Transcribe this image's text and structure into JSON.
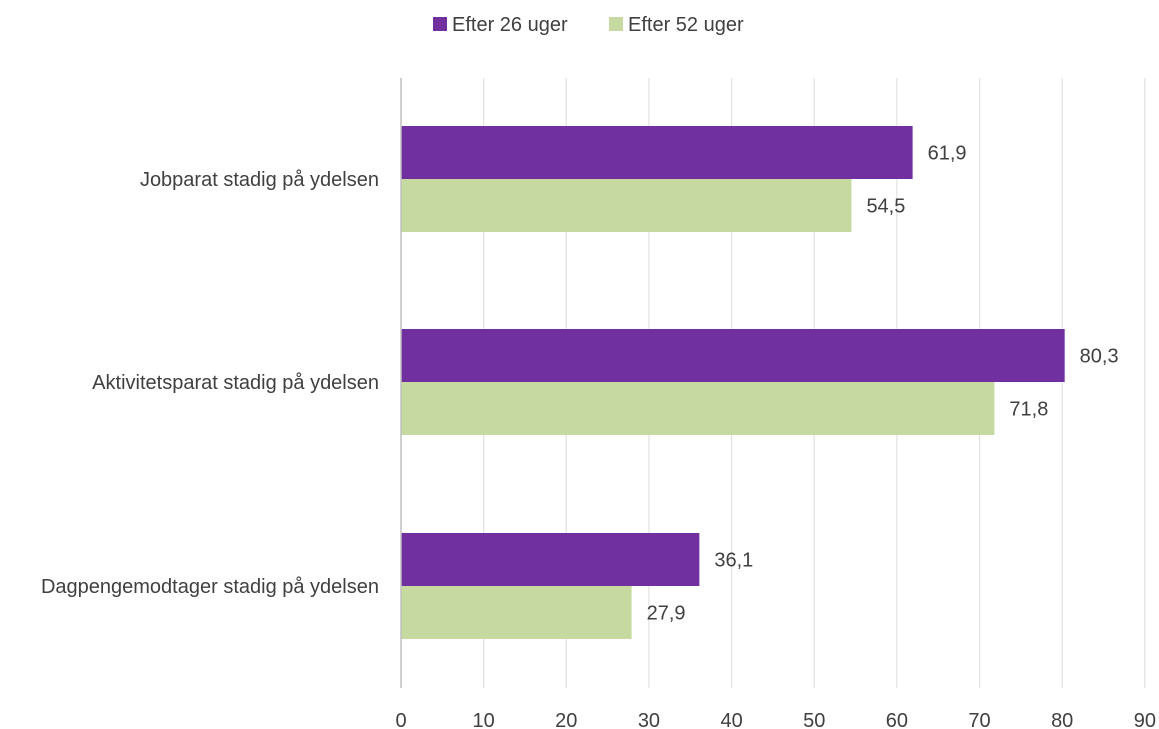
{
  "chart_data": {
    "type": "bar",
    "orientation": "horizontal",
    "categories": [
      "Jobparat stadig på ydelsen",
      "Aktivitetsparat stadig på ydelsen",
      "Dagpengemodtager stadig på ydelsen"
    ],
    "series": [
      {
        "name": "Efter 26 uger",
        "color": "#7030a0",
        "values": [
          61.9,
          80.3,
          36.1
        ],
        "labels": [
          "61,9",
          "80,3",
          "36,1"
        ]
      },
      {
        "name": "Efter 52 uger",
        "color": "#c5d9a0",
        "values": [
          54.5,
          71.8,
          27.9
        ],
        "labels": [
          "54,5",
          "71,8",
          "27,9"
        ]
      }
    ],
    "xlim": [
      0,
      90
    ],
    "xticks": [
      "0",
      "10",
      "20",
      "30",
      "40",
      "50",
      "60",
      "70",
      "80",
      "90"
    ],
    "title": "",
    "xlabel": "",
    "ylabel": "",
    "legend_position": "top",
    "grid": "vertical"
  }
}
